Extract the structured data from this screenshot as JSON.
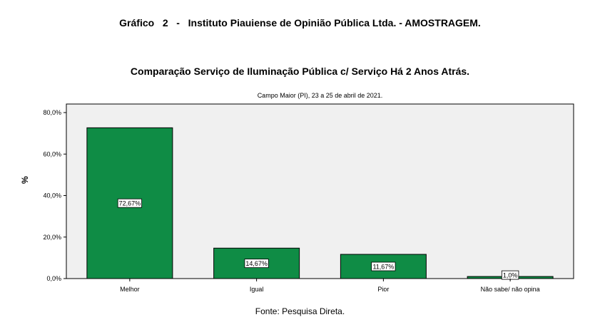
{
  "header": {
    "title": "Gráfico   2   -   Instituto Piauiense de Opinião Pública Ltda. - AMOSTRAGEM.",
    "chart_title": "Comparação Serviço de Iluminação Pública c/ Serviço Há 2 Anos Atrás.",
    "subtitle": "Campo Maior (PI), 23 a 25 de abril de 2021.",
    "source": "Fonte: Pesquisa Direta."
  },
  "chart_data": {
    "type": "bar",
    "categories": [
      "Melhor",
      "Igual",
      "Pior",
      "Não sabe/ não opina"
    ],
    "values": [
      72.67,
      14.67,
      11.67,
      1.0
    ],
    "data_labels": [
      "72,67%",
      "14,67%",
      "11,67%",
      "1,0%"
    ],
    "ylabel": "%",
    "ylim": [
      0,
      80
    ],
    "yticks": [
      0,
      20,
      40,
      60,
      80
    ],
    "ytick_labels": [
      "0,0%",
      "20,0%",
      "40,0%",
      "60,0%",
      "80,0%"
    ],
    "grid": false,
    "bar_color": "#0f8c45",
    "plot_background": "#f0f0f0"
  }
}
